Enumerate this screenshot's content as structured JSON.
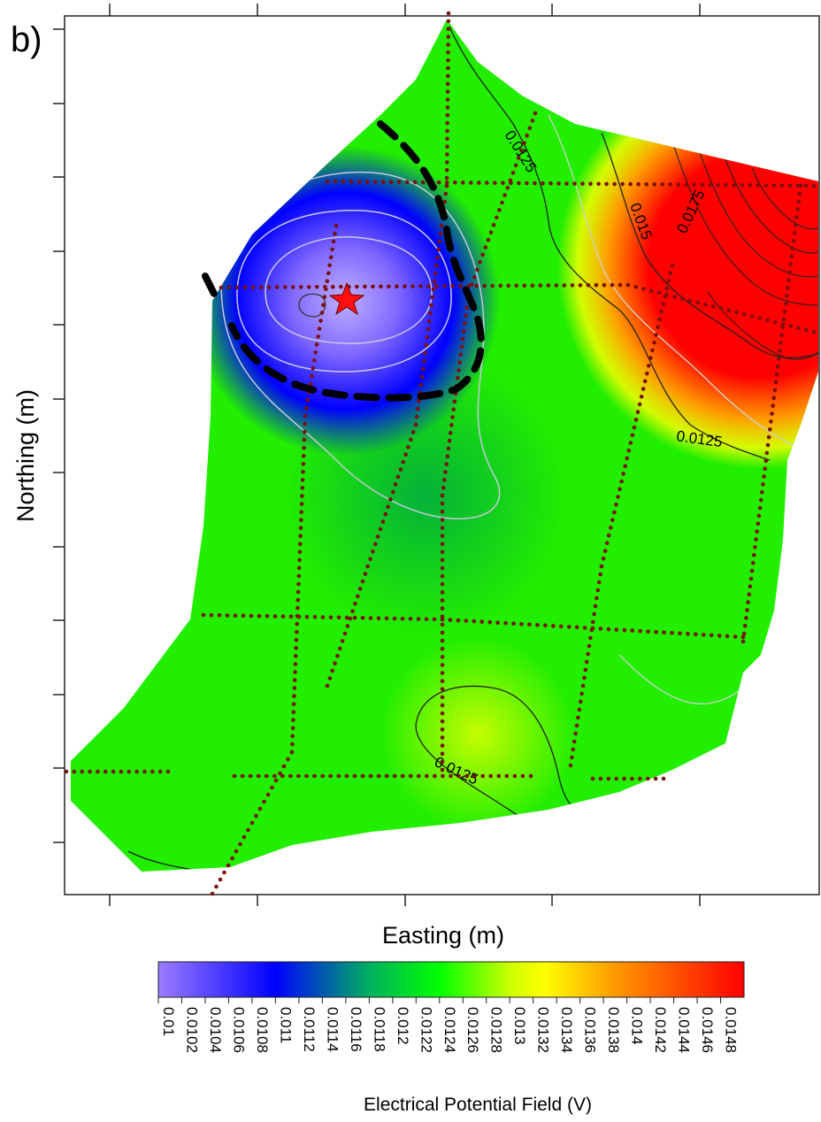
{
  "panel_label": "b)",
  "chart_data": {
    "type": "heatmap",
    "title": "",
    "xlabel": "Easting (m)",
    "ylabel": "Northing (m)",
    "x_tick_labels_shown": false,
    "y_tick_labels_shown": false,
    "grid": false,
    "colorbar": {
      "title": "Electrical Potential Field (V)",
      "range": [
        0.01,
        0.015
      ],
      "colors": [
        "#9c7cff",
        "#0000ff",
        "#00d000",
        "#00ff00",
        "#ffff00",
        "#ff9900",
        "#ff0000"
      ],
      "ticks": [
        "0.01",
        "0.0102",
        "0.0104",
        "0.0106",
        "0.0108",
        "0.011",
        "0.0112",
        "0.0114",
        "0.0116",
        "0.0118",
        "0.012",
        "0.0122",
        "0.0124",
        "0.0126",
        "0.0128",
        "0.013",
        "0.0132",
        "0.0134",
        "0.0136",
        "0.0138",
        "0.014",
        "0.0142",
        "0.0144",
        "0.0146",
        "0.0148"
      ]
    },
    "contour_labels": [
      "0.0125",
      "0.015",
      "0.0175",
      "0.0125",
      "0.0125"
    ],
    "annotations": [
      "red star marker at potential minimum",
      "dashed black boundary around low-potential anomaly",
      "survey measurement points along profile lines"
    ]
  }
}
